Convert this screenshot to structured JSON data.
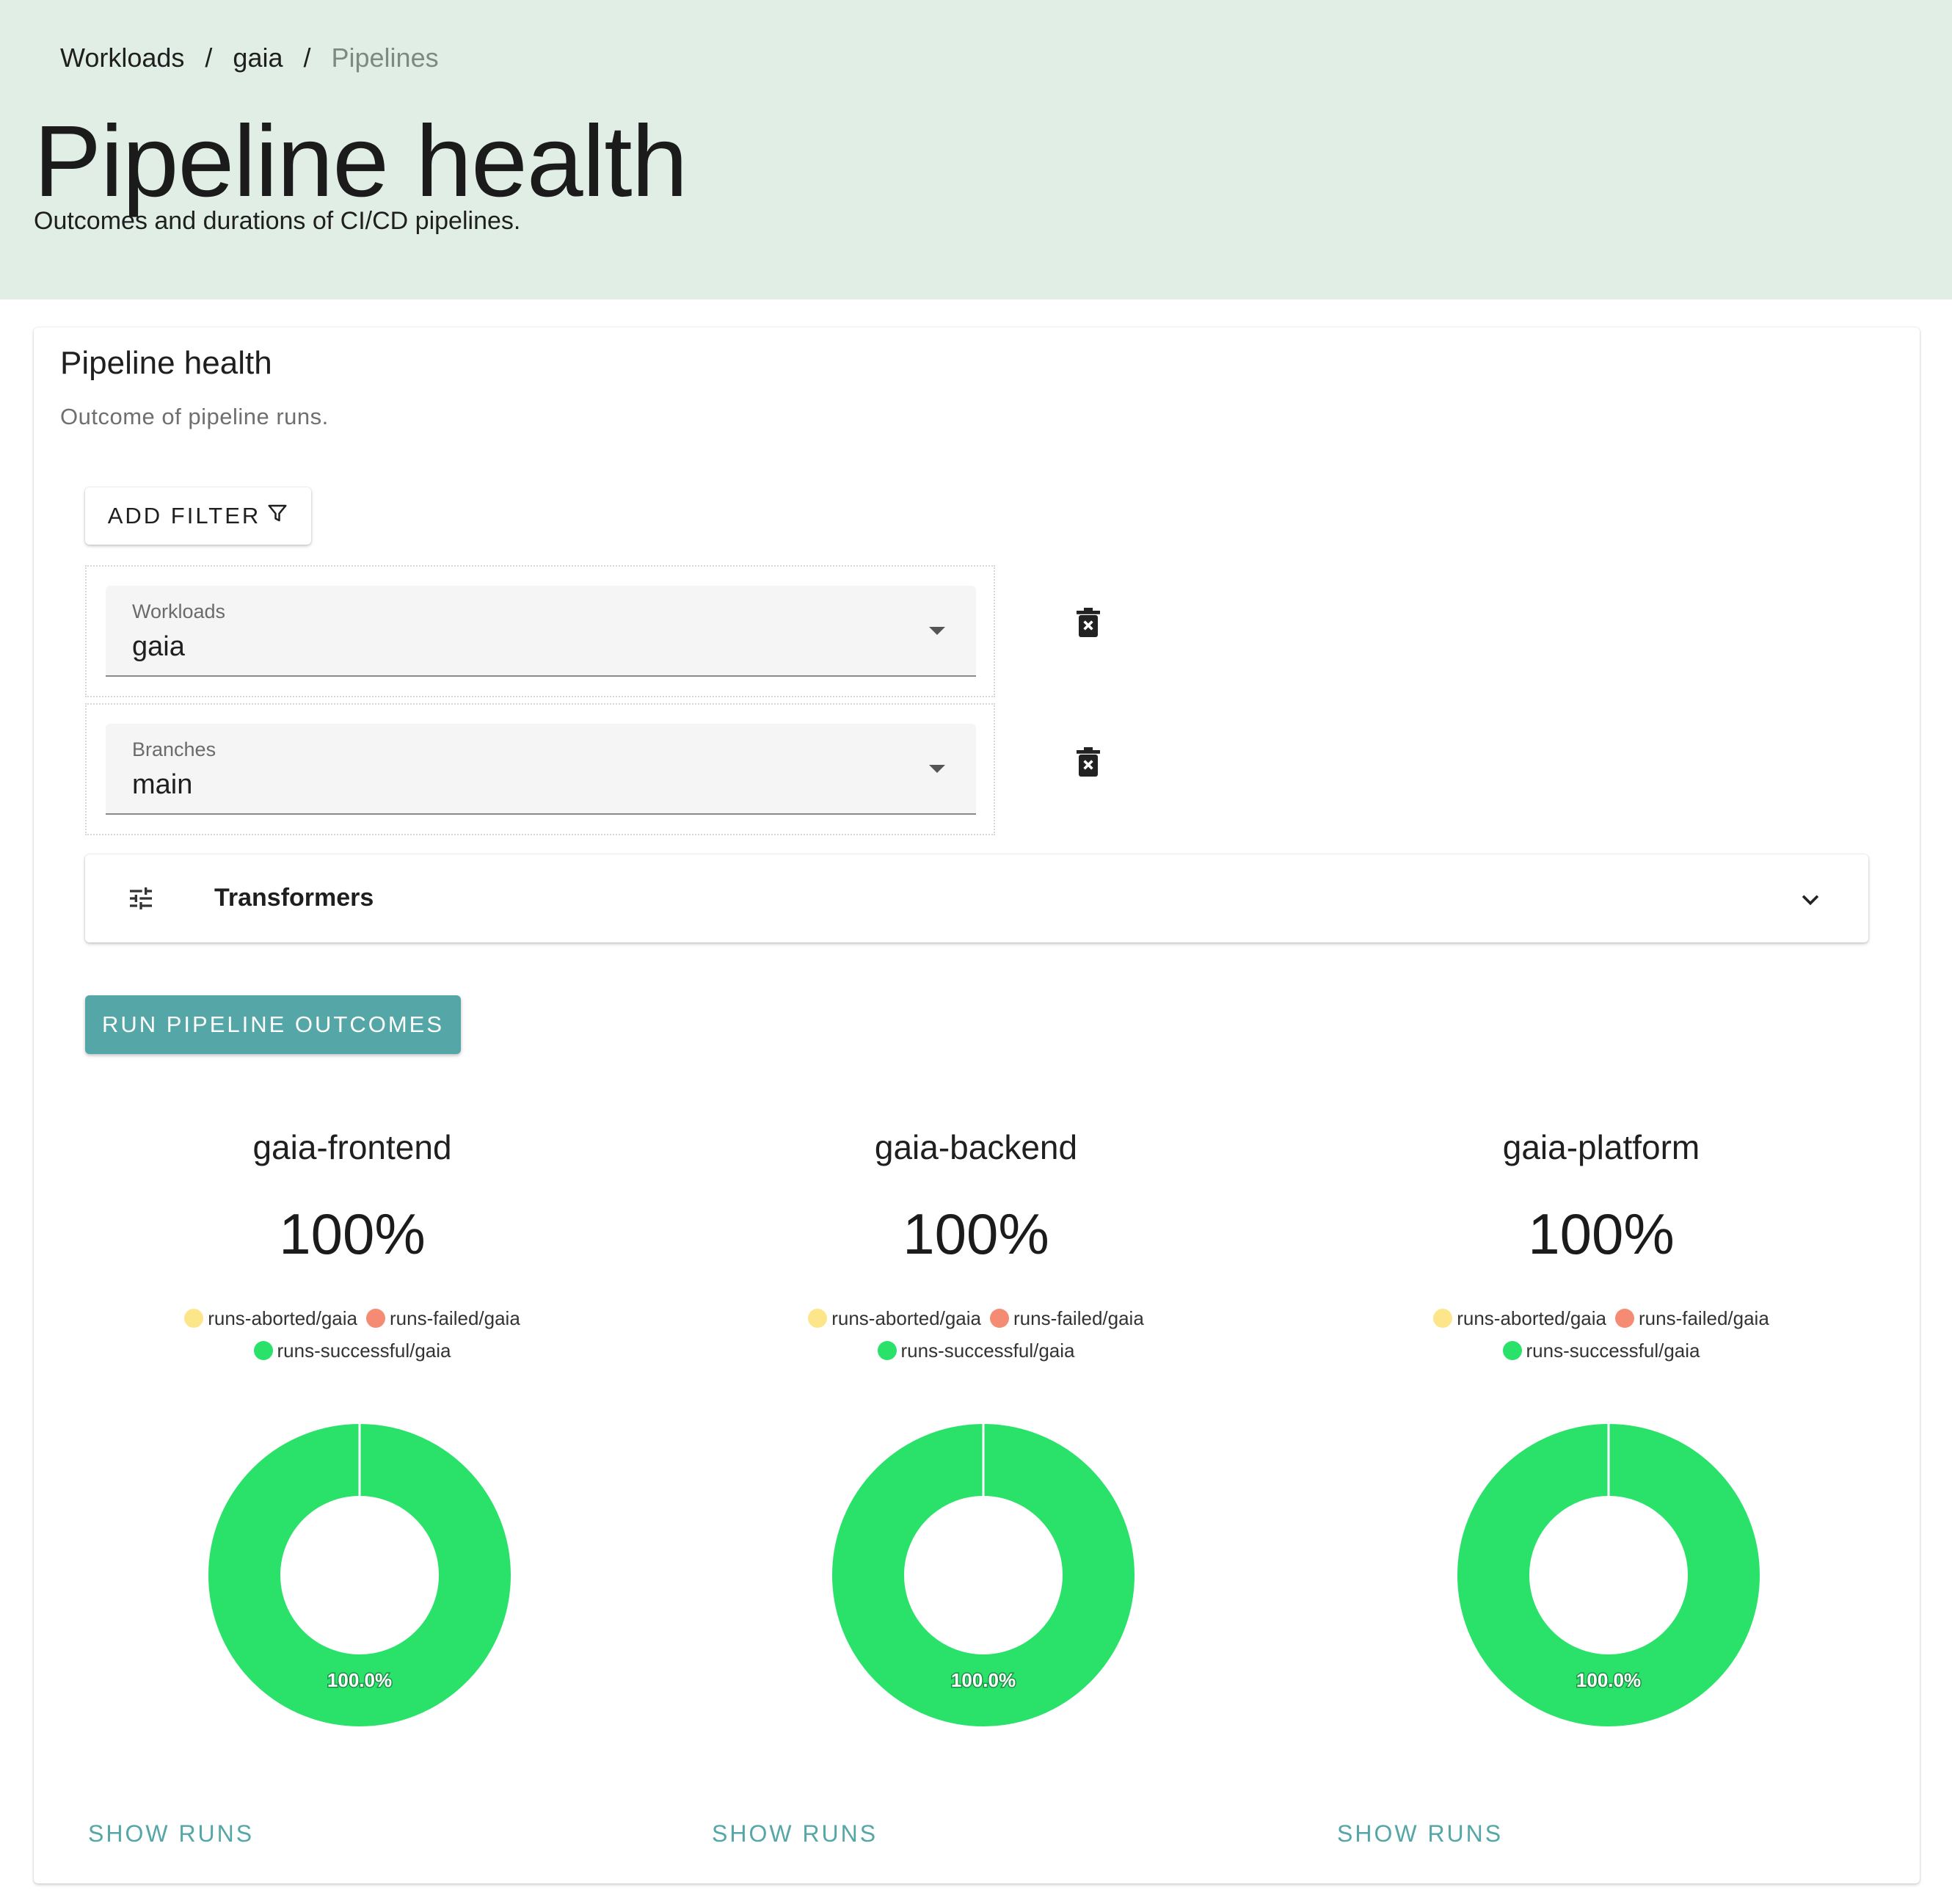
{
  "breadcrumb": {
    "items": [
      "Workloads",
      "gaia"
    ],
    "current": "Pipelines",
    "separator": "/"
  },
  "page": {
    "title": "Pipeline health",
    "subtitle": "Outcomes and durations of CI/CD pipelines."
  },
  "card": {
    "title": "Pipeline health",
    "subtitle": "Outcome of pipeline runs."
  },
  "add_filter_label": "ADD FILTER",
  "filters": [
    {
      "label": "Workloads",
      "value": "gaia"
    },
    {
      "label": "Branches",
      "value": "main"
    }
  ],
  "transformers_label": "Transformers",
  "run_button_label": "RUN PIPELINE OUTCOMES",
  "show_runs_label": "SHOW RUNS",
  "colors": {
    "aborted": "#fde68a",
    "failed": "#f58b73",
    "successful": "#2ae26a",
    "accent": "#55a6a6",
    "header_bg": "#e0eee6"
  },
  "legend": [
    "runs-aborted/gaia",
    "runs-failed/gaia",
    "runs-successful/gaia"
  ],
  "chart_data": [
    {
      "type": "pie",
      "title": "gaia-frontend",
      "headline": "100%",
      "labels": [
        "runs-aborted/gaia",
        "runs-failed/gaia",
        "runs-successful/gaia"
      ],
      "values": [
        0,
        0,
        100
      ],
      "slice_label": "100.0%"
    },
    {
      "type": "pie",
      "title": "gaia-backend",
      "headline": "100%",
      "labels": [
        "runs-aborted/gaia",
        "runs-failed/gaia",
        "runs-successful/gaia"
      ],
      "values": [
        0,
        0,
        100
      ],
      "slice_label": "100.0%"
    },
    {
      "type": "pie",
      "title": "gaia-platform",
      "headline": "100%",
      "labels": [
        "runs-aborted/gaia",
        "runs-failed/gaia",
        "runs-successful/gaia"
      ],
      "values": [
        0,
        0,
        100
      ],
      "slice_label": "100.0%"
    }
  ]
}
